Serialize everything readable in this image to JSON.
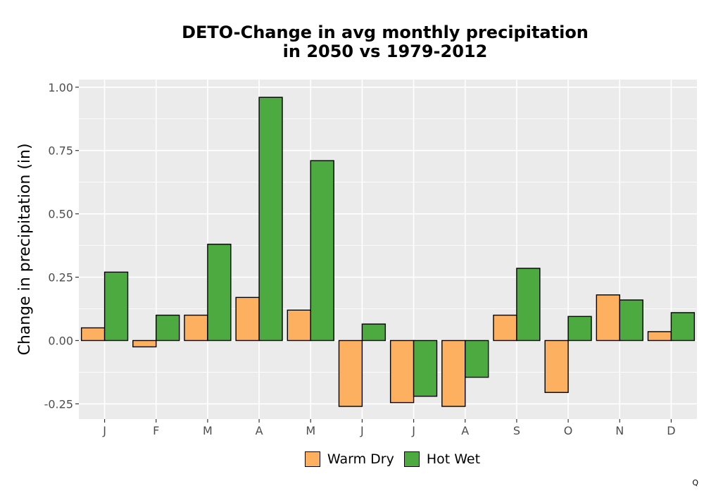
{
  "chart_data": {
    "type": "bar",
    "title_lines": [
      "DETO-Change in avg monthly precipitation",
      "in 2050 vs 1979-2012"
    ],
    "xlabel": "",
    "ylabel": "Change in precipitation (in)",
    "categories": [
      "J",
      "F",
      "M",
      "A",
      "M",
      "J",
      "J",
      "A",
      "S",
      "O",
      "N",
      "D"
    ],
    "series": [
      {
        "name": "Warm Dry",
        "color": "#FDB060",
        "values": [
          0.05,
          -0.025,
          0.1,
          0.17,
          0.12,
          -0.26,
          -0.245,
          -0.26,
          0.1,
          -0.205,
          0.18,
          0.035
        ]
      },
      {
        "name": "Hot Wet",
        "color": "#4DAA40",
        "values": [
          0.27,
          0.1,
          0.38,
          0.96,
          0.71,
          0.065,
          -0.22,
          -0.145,
          0.285,
          0.095,
          0.16,
          0.11
        ]
      }
    ],
    "ylim": [
      -0.31,
      1.03
    ],
    "yticks": [
      -0.25,
      0.0,
      0.25,
      0.5,
      0.75,
      1.0
    ],
    "ytick_labels": [
      "-0.25",
      "0.00",
      "0.25",
      "0.50",
      "0.75",
      "1.00"
    ],
    "grid": true,
    "panel_background": "#EBEBEB",
    "legend_position": "bottom"
  },
  "corner_mark": "Q"
}
